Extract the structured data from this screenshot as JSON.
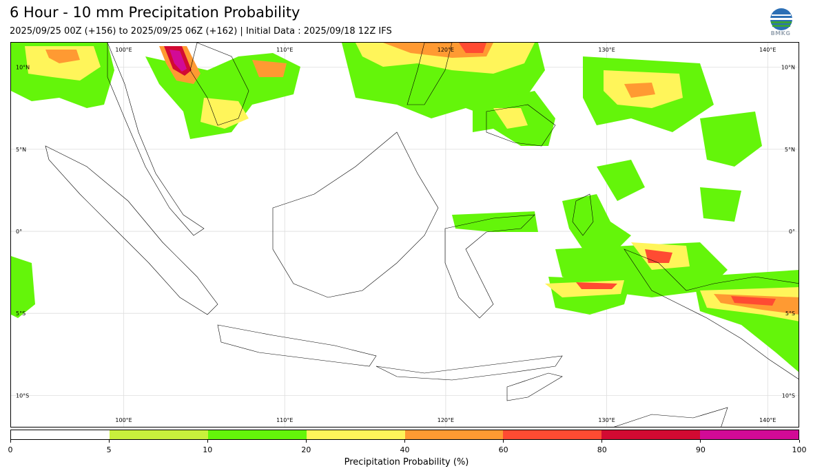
{
  "title": "6 Hour - 10 mm Precipitation Probability",
  "subtitle": "2025/09/25 00Z (+156) to 2025/09/25 06Z (+162) | Initial Data : 2025/09/18 12Z IFS",
  "logo": {
    "text": "BMKG"
  },
  "map": {
    "lon_labels_top": [
      "100°E",
      "110°E",
      "120°E",
      "130°E",
      "140°E"
    ],
    "lon_labels_bottom": [
      "100°E",
      "110°E",
      "120°E",
      "130°E",
      "140°E"
    ],
    "lat_labels_left": [
      "10°N",
      "5°N",
      "0°",
      "5°S",
      "10°S"
    ],
    "lat_labels_right": [
      "10°N",
      "5°N",
      "0°",
      "5°S",
      "10°S"
    ],
    "lon_values": [
      100,
      110,
      120,
      130,
      140
    ],
    "lat_values": [
      10,
      5,
      0,
      -5,
      -10
    ],
    "lon_range": [
      93,
      142
    ],
    "lat_range": [
      -12,
      11.5
    ],
    "grid": true
  },
  "colorbar": {
    "label": "Precipitation Probability (%)",
    "ticks": [
      "0",
      "5",
      "10",
      "20",
      "40",
      "60",
      "80",
      "90",
      "100"
    ],
    "colors": [
      "#ffffff",
      "#c8f03c",
      "#64f50a",
      "#fff55a",
      "#ff9a32",
      "#ff4b32",
      "#d20a32",
      "#d20a96"
    ]
  },
  "colors": {
    "low": "#c8f03c",
    "mid": "#64f50a",
    "yellow": "#fff55a",
    "orange": "#ff9a32",
    "red": "#ff4b32",
    "crimson": "#d20a32",
    "magenta": "#d20a96"
  }
}
